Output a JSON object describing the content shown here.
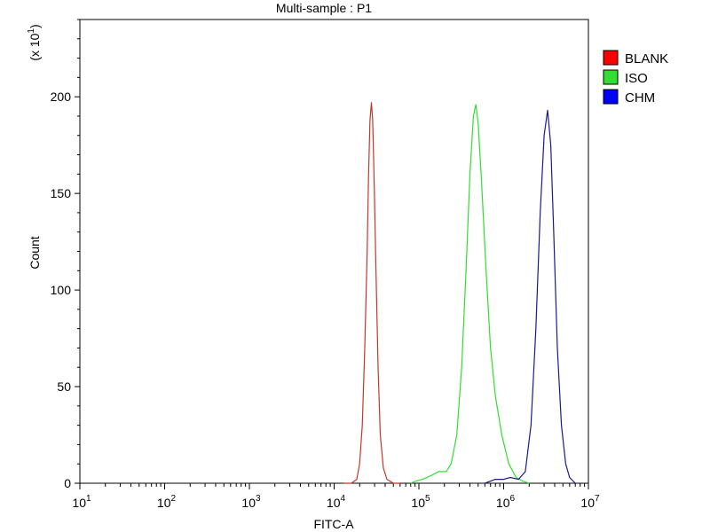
{
  "chart_data": {
    "type": "line",
    "title": "Multi-sample : P1",
    "xlabel": "FITC-A",
    "ylabel": "Count",
    "y_multiplier": "(x 10^1)",
    "x_scale": "log",
    "xlim": [
      10,
      10000000
    ],
    "ylim": [
      0,
      240
    ],
    "x_ticks": [
      10,
      100,
      1000,
      10000,
      100000,
      1000000,
      10000000
    ],
    "x_tick_labels": [
      {
        "base": "10",
        "exp": "1"
      },
      {
        "base": "10",
        "exp": "2"
      },
      {
        "base": "10",
        "exp": "3"
      },
      {
        "base": "10",
        "exp": "4"
      },
      {
        "base": "10",
        "exp": "5"
      },
      {
        "base": "10",
        "exp": "6"
      },
      {
        "base": "10",
        "exp": "7"
      }
    ],
    "y_ticks": [
      0,
      50,
      100,
      150,
      200
    ],
    "grid": false,
    "legend_position": "right",
    "series": [
      {
        "name": "BLANK",
        "color": "#c0392b",
        "legend_color": "#ff0000",
        "points": [
          [
            13000,
            0
          ],
          [
            16000,
            0
          ],
          [
            18500,
            2
          ],
          [
            20000,
            10
          ],
          [
            21500,
            30
          ],
          [
            23000,
            70
          ],
          [
            24500,
            120
          ],
          [
            25500,
            160
          ],
          [
            26500,
            188
          ],
          [
            27500,
            197
          ],
          [
            28500,
            188
          ],
          [
            29500,
            160
          ],
          [
            31000,
            115
          ],
          [
            33000,
            60
          ],
          [
            35000,
            25
          ],
          [
            38000,
            8
          ],
          [
            42000,
            2
          ],
          [
            50000,
            0
          ],
          [
            60000,
            0
          ]
        ]
      },
      {
        "name": "ISO",
        "color": "#33dd33",
        "legend_color": "#33dd33",
        "points": [
          [
            80000,
            0
          ],
          [
            90000,
            1
          ],
          [
            110000,
            2
          ],
          [
            140000,
            4
          ],
          [
            170000,
            6
          ],
          [
            210000,
            6
          ],
          [
            240000,
            10
          ],
          [
            280000,
            25
          ],
          [
            320000,
            60
          ],
          [
            360000,
            110
          ],
          [
            400000,
            160
          ],
          [
            440000,
            190
          ],
          [
            470000,
            196
          ],
          [
            500000,
            186
          ],
          [
            550000,
            155
          ],
          [
            620000,
            110
          ],
          [
            700000,
            70
          ],
          [
            800000,
            45
          ],
          [
            950000,
            25
          ],
          [
            1150000,
            10
          ],
          [
            1400000,
            3
          ],
          [
            1700000,
            1
          ],
          [
            2000000,
            0
          ]
        ]
      },
      {
        "name": "CHM",
        "color": "#1a1a8c",
        "legend_color": "#0000ff",
        "points": [
          [
            600000,
            0
          ],
          [
            800000,
            2
          ],
          [
            1000000,
            2
          ],
          [
            1200000,
            3
          ],
          [
            1500000,
            2
          ],
          [
            1800000,
            6
          ],
          [
            2100000,
            30
          ],
          [
            2400000,
            80
          ],
          [
            2700000,
            140
          ],
          [
            3000000,
            180
          ],
          [
            3300000,
            193
          ],
          [
            3600000,
            175
          ],
          [
            3900000,
            130
          ],
          [
            4300000,
            70
          ],
          [
            4800000,
            30
          ],
          [
            5400000,
            10
          ],
          [
            6000000,
            3
          ],
          [
            7000000,
            0
          ]
        ]
      }
    ]
  }
}
